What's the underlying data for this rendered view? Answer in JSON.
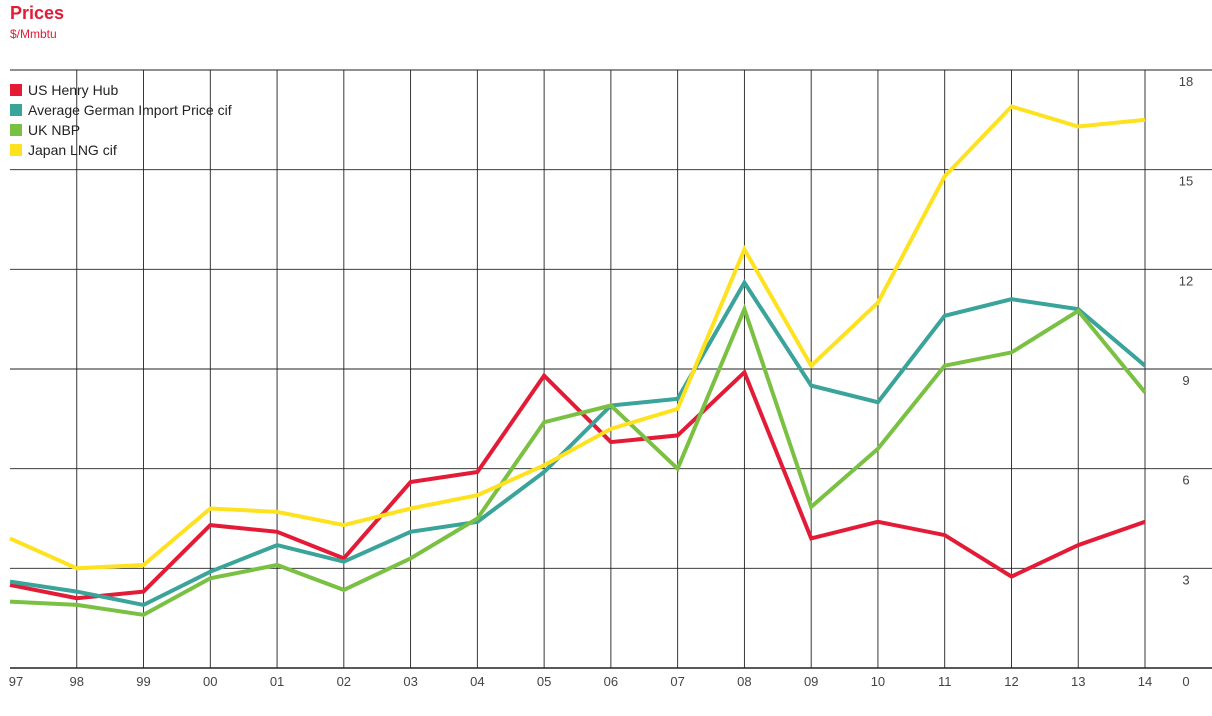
{
  "chart_data": {
    "type": "line",
    "title": "Prices",
    "subtitle": "$/Mmbtu",
    "categories": [
      "97",
      "98",
      "99",
      "00",
      "01",
      "02",
      "03",
      "04",
      "05",
      "06",
      "07",
      "08",
      "09",
      "10",
      "11",
      "12",
      "13",
      "14"
    ],
    "y_ticks": [
      "0",
      "3",
      "6",
      "9",
      "12",
      "15",
      "18"
    ],
    "ylim": [
      0,
      18
    ],
    "grid": true,
    "legend_position": "top-left",
    "series": [
      {
        "name": "US Henry Hub",
        "color": "#e31b37",
        "values": [
          2.5,
          2.1,
          2.3,
          4.3,
          4.1,
          3.3,
          5.6,
          5.9,
          8.8,
          6.8,
          7.0,
          8.9,
          3.9,
          4.4,
          4.0,
          2.75,
          3.7,
          4.4
        ]
      },
      {
        "name": "Average German Import Price cif",
        "color": "#3aa39a",
        "values": [
          2.6,
          2.3,
          1.9,
          2.9,
          3.7,
          3.2,
          4.1,
          4.4,
          5.9,
          7.9,
          8.1,
          11.6,
          8.5,
          8.0,
          10.6,
          11.1,
          10.8,
          9.1
        ]
      },
      {
        "name": "UK NBP",
        "color": "#7ac143",
        "values": [
          2.0,
          1.9,
          1.6,
          2.7,
          3.1,
          2.35,
          3.3,
          4.5,
          7.4,
          7.9,
          6.0,
          10.8,
          4.85,
          6.6,
          9.1,
          9.5,
          10.75,
          8.3
        ]
      },
      {
        "name": "Japan LNG cif",
        "color": "#ffe21f",
        "values": [
          3.9,
          3.0,
          3.1,
          4.8,
          4.7,
          4.3,
          4.8,
          5.2,
          6.1,
          7.2,
          7.8,
          12.6,
          9.1,
          11.0,
          14.8,
          16.9,
          16.3,
          16.5
        ]
      }
    ]
  }
}
